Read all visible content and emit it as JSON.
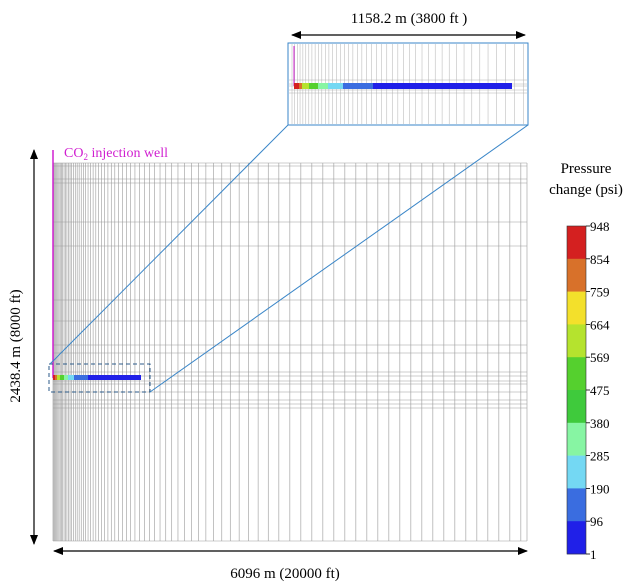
{
  "labels": {
    "zoom_width": "1158.2 m (3800 ft )",
    "well_prefix": "CO",
    "well_sub": "2",
    "well_suffix": " injection well",
    "height": "2438.4 m (8000 ft)",
    "width": "6096 m (20000 ft)",
    "colorbar_title_1": "Pressure",
    "colorbar_title_2": "change (psi)"
  },
  "colorbar": {
    "ticks": [
      "948",
      "854",
      "759",
      "664",
      "569",
      "475",
      "380",
      "285",
      "190",
      "96",
      "1"
    ],
    "colors": [
      "#d42020",
      "#d8712a",
      "#f3e02b",
      "#b5e32e",
      "#55d02e",
      "#3fca3c",
      "#87f5a3",
      "#74d8f3",
      "#3a6de0",
      "#2020e8"
    ]
  },
  "colors": {
    "grid": "#9a9a9a",
    "well": "#d020d0",
    "zoom_line": "#3a86c8",
    "arrow": "#000000"
  },
  "plume_colors": [
    "#d42020",
    "#d8712a",
    "#b5e32e",
    "#55d02e",
    "#87f5a3",
    "#74d8f3",
    "#3a6de0",
    "#2020e8"
  ]
}
